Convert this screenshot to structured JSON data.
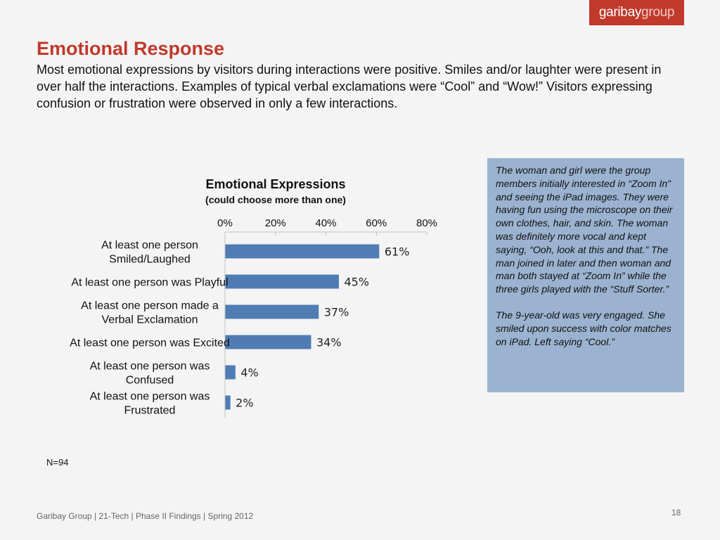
{
  "brand": {
    "logo_part1": "garibay",
    "logo_part2": "group",
    "color": "#c0392b"
  },
  "slide": {
    "title": "Emotional Response",
    "subtitle": "Most emotional expressions by visitors during interactions were positive. Smiles and/or laughter were present in over half the interactions.  Examples of typical verbal exclamations were “Cool” and “Wow!” Visitors expressing confusion or frustration were observed in only a few interactions.",
    "sample_size": "N=94",
    "footer": "Garibay Group | 21-Tech | Phase II Findings | Spring 2012",
    "page_number": "18"
  },
  "note": {
    "paragraph1": "The woman and girl were the group members initially interested in “Zoom In” and seeing the iPad images. They were having fun using the microscope on their own clothes, hair, and skin. The woman was definitely more vocal and kept saying, “Ooh, look at this and that.” The man joined in later and then woman and man both stayed at “Zoom In” while the three girls played with the “Stuff Sorter.”",
    "paragraph2": "The 9-year-old was very engaged. She smiled upon success with color matches on iPad. Left saying “Cool.”",
    "background": "#9bb3d0"
  },
  "chart_data": {
    "type": "bar",
    "orientation": "horizontal",
    "title": "Emotional Expressions",
    "subtitle": "(could choose more than one)",
    "categories": [
      [
        "At least one person",
        "Smiled/Laughed"
      ],
      [
        "At least one person was Playful"
      ],
      [
        "At least one person made a",
        "Verbal Exclamation"
      ],
      [
        "At least one person was Excited"
      ],
      [
        "At least one person was",
        "Confused"
      ],
      [
        "At least one person was",
        "Frustrated"
      ]
    ],
    "values": [
      61,
      45,
      37,
      34,
      4,
      2
    ],
    "data_labels": [
      "61%",
      "45%",
      "37%",
      "34%",
      "4%",
      "2%"
    ],
    "xlim": [
      0,
      80
    ],
    "ticks": [
      0,
      20,
      40,
      60,
      80
    ],
    "tick_labels": [
      "0%",
      "20%",
      "40%",
      "60%",
      "80%"
    ],
    "axis_position": "top",
    "grid": false,
    "bar_color": "#4f7cb3"
  }
}
